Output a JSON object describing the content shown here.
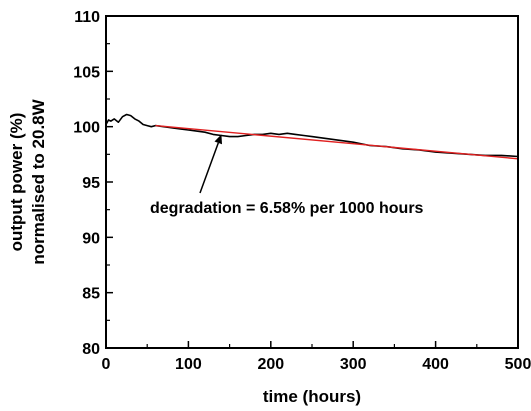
{
  "chart_data": {
    "type": "line",
    "title": "",
    "xlabel": "time (hours)",
    "ylabel_lines": [
      "output power (%)",
      "normalised to 20.8W"
    ],
    "xlim": [
      0,
      500
    ],
    "ylim": [
      80,
      110
    ],
    "x_ticks": [
      "0",
      "100",
      "200",
      "300",
      "400",
      "500"
    ],
    "y_ticks": [
      "80",
      "85",
      "90",
      "95",
      "100",
      "105",
      "110"
    ],
    "grid": false,
    "legend": "none",
    "annotation": {
      "text": "degradation = 6.58% per 1000 hours",
      "arrow_target": {
        "x": 140,
        "y": 99.3
      }
    },
    "series": [
      {
        "color": "#000000",
        "x": [
          0,
          3,
          6,
          10,
          15,
          20,
          25,
          30,
          35,
          40,
          45,
          50,
          55,
          60,
          70,
          80,
          90,
          100,
          110,
          120,
          130,
          140,
          150,
          160,
          170,
          180,
          190,
          200,
          210,
          220,
          230,
          240,
          250,
          260,
          270,
          280,
          290,
          300,
          320,
          340,
          360,
          380,
          400,
          420,
          440,
          460,
          480,
          500
        ],
        "y": [
          100.2,
          100.6,
          100.5,
          100.7,
          100.4,
          100.9,
          101.1,
          101.0,
          100.7,
          100.5,
          100.2,
          100.1,
          100.0,
          100.1,
          100.0,
          99.9,
          99.8,
          99.7,
          99.6,
          99.5,
          99.3,
          99.2,
          99.1,
          99.1,
          99.2,
          99.3,
          99.3,
          99.4,
          99.3,
          99.4,
          99.3,
          99.2,
          99.1,
          99.0,
          98.9,
          98.8,
          98.7,
          98.6,
          98.3,
          98.2,
          98.0,
          97.9,
          97.7,
          97.6,
          97.5,
          97.4,
          97.4,
          97.3
        ]
      },
      {
        "color": "#e02020",
        "x": [
          60,
          500
        ],
        "y": [
          100.1,
          97.1
        ]
      }
    ]
  }
}
